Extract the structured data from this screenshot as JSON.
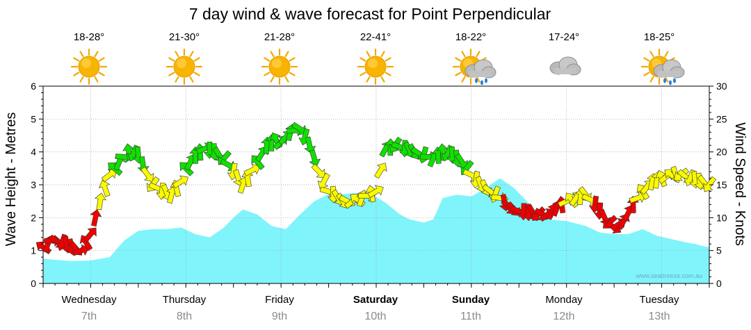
{
  "title": "7 day wind & wave forecast for Point Perpendicular",
  "credit": "www.seabreeze.com.au",
  "colors": {
    "wave_fill": "#80f4fb",
    "wind_light": "#11e000",
    "wind_moderate": "#fafa00",
    "wind_strong": "#ef0000",
    "arrow_stroke": "#333333"
  },
  "days": [
    {
      "name": "Wednesday",
      "date": "7th",
      "bold": false,
      "temp": "18-28°",
      "icon": "sun-icon"
    },
    {
      "name": "Thursday",
      "date": "8th",
      "bold": false,
      "temp": "21-30°",
      "icon": "sun-icon"
    },
    {
      "name": "Friday",
      "date": "9th",
      "bold": false,
      "temp": "21-28°",
      "icon": "sun-icon"
    },
    {
      "name": "Saturday",
      "date": "10th",
      "bold": true,
      "temp": "22-41°",
      "icon": "sun-icon"
    },
    {
      "name": "Sunday",
      "date": "11th",
      "bold": true,
      "temp": "18-22°",
      "icon": "sun-cloud-rain-icon"
    },
    {
      "name": "Monday",
      "date": "12th",
      "bold": false,
      "temp": "17-24°",
      "icon": "cloud-icon"
    },
    {
      "name": "Tuesday",
      "date": "13th",
      "bold": false,
      "temp": "18-25°",
      "icon": "sun-cloud-rain-icon"
    }
  ],
  "chart_data": {
    "type": "area",
    "title": "7 day wind & wave forecast for Point Perpendicular",
    "x_unit": "days from start of Wednesday 7th",
    "xlim": [
      0,
      7
    ],
    "ylabel_left": "Wave Height - Metres",
    "ylim_left": [
      0,
      6
    ],
    "yticks_left": [
      "0",
      "1",
      "2",
      "3",
      "4",
      "5",
      "6"
    ],
    "ylabel_right": "Wind Speed - Knots",
    "ylim_right": [
      0,
      30
    ],
    "yticks_right": [
      "0",
      "5",
      "10",
      "15",
      "20",
      "25",
      "30"
    ],
    "grid": true,
    "series": [
      {
        "type": "area",
        "axis": "left",
        "x": [
          0,
          0.12,
          0.3,
          0.5,
          0.7,
          0.85,
          1.0,
          1.15,
          1.3,
          1.45,
          1.6,
          1.75,
          1.9,
          2.0,
          2.1,
          2.25,
          2.4,
          2.55,
          2.7,
          2.85,
          3.0,
          3.15,
          3.3,
          3.45,
          3.6,
          3.75,
          3.85,
          4.0,
          4.1,
          4.2,
          4.35,
          4.5,
          4.65,
          4.8,
          4.95,
          5.15,
          5.3,
          5.5,
          5.7,
          5.85,
          6.0,
          6.15,
          6.3,
          6.45,
          6.6,
          6.75,
          6.85,
          6.92,
          7.0
        ],
        "values": [
          0.75,
          0.72,
          0.68,
          0.7,
          0.8,
          1.3,
          1.6,
          1.65,
          1.65,
          1.7,
          1.5,
          1.4,
          1.7,
          2.0,
          2.25,
          2.1,
          1.75,
          1.65,
          2.1,
          2.5,
          2.72,
          2.72,
          2.75,
          2.72,
          2.45,
          2.1,
          1.95,
          1.85,
          1.95,
          2.6,
          2.7,
          2.65,
          2.9,
          3.2,
          2.9,
          2.3,
          1.95,
          1.9,
          1.75,
          1.55,
          1.5,
          1.5,
          1.65,
          1.45,
          1.35,
          1.25,
          1.2,
          1.15,
          1.1
        ]
      },
      {
        "type": "line",
        "axis": "right",
        "name": "wind speed (arrows)",
        "x": [
          0,
          0.1,
          0.2,
          0.3,
          0.4,
          0.5,
          0.55,
          0.6,
          0.65,
          0.7,
          0.8,
          0.9,
          1.0,
          1.05,
          1.1,
          1.15,
          1.25,
          1.35,
          1.45,
          1.5,
          1.6,
          1.7,
          1.8,
          1.9,
          2.0,
          2.1,
          2.15,
          2.25,
          2.35,
          2.45,
          2.5,
          2.6,
          2.7,
          2.8,
          2.9,
          3.0,
          3.05,
          3.15,
          3.25,
          3.35,
          3.5,
          3.6,
          3.7,
          3.8,
          3.9,
          4.0,
          4.1,
          4.2,
          4.3,
          4.4,
          4.5,
          4.6,
          4.7,
          4.8,
          4.9,
          5.0,
          5.1,
          5.2,
          5.3,
          5.4,
          5.5,
          5.6,
          5.7,
          5.8,
          5.9,
          6.0,
          6.1,
          6.2,
          6.3,
          6.4,
          6.5,
          6.6,
          6.7,
          6.8,
          6.9,
          7.0
        ],
        "values": [
          5.5,
          6.5,
          6.2,
          5.5,
          5.0,
          7.5,
          10.0,
          12.5,
          14.5,
          16.5,
          18.5,
          20.0,
          19.5,
          18.0,
          16.5,
          15.0,
          14.0,
          13.5,
          15.5,
          17.5,
          19.5,
          20.5,
          20.0,
          19.0,
          17.0,
          15.0,
          16.0,
          18.5,
          21.0,
          21.8,
          21.5,
          23.0,
          23.5,
          21.0,
          17.0,
          14.0,
          13.5,
          12.5,
          12.5,
          13.0,
          14.0,
          20.5,
          21.0,
          20.5,
          20.0,
          19.5,
          19.0,
          20.0,
          19.5,
          18.5,
          16.5,
          15.0,
          14.0,
          13.0,
          11.5,
          11.0,
          10.8,
          10.5,
          10.5,
          11.5,
          12.5,
          13.0,
          13.5,
          12.0,
          10.0,
          8.5,
          9.5,
          12.0,
          14.0,
          15.5,
          16.0,
          16.5,
          16.5,
          16.0,
          15.5,
          15.0
        ]
      }
    ]
  }
}
